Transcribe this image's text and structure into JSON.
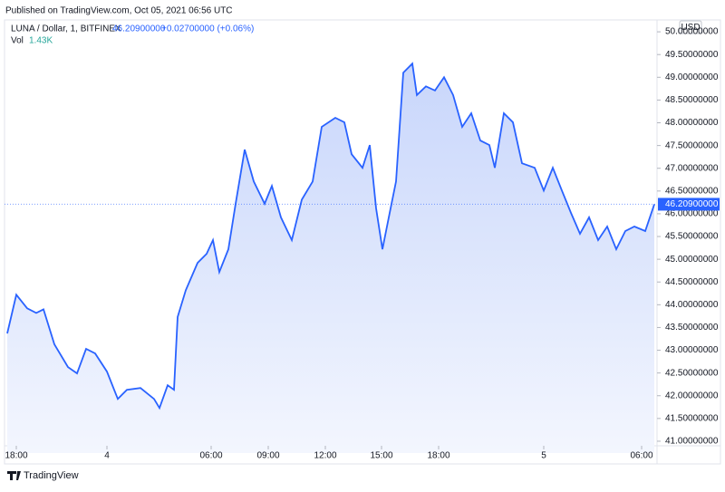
{
  "header": "Published on TradingView.com, Oct 05, 2021 06:56 UTC",
  "legend": {
    "symbol": "LUNA / Dollar, 1, BITFINEX",
    "price": "46.20900000",
    "change": "+0.02700000 (+0.06%)",
    "vol_label": "Vol",
    "vol_value": "1.43K"
  },
  "currency": "USD",
  "price_line_label": "46.20900000",
  "footer": "TradingView",
  "chart_data": {
    "type": "area",
    "color": "#2962ff",
    "fill": "#dbe4fb",
    "x": [
      3,
      13,
      25,
      35,
      43,
      55,
      70,
      80,
      90,
      100,
      113,
      125,
      135,
      150,
      165,
      171,
      180,
      187,
      191,
      200,
      213,
      223,
      230,
      237,
      247,
      255,
      265,
      275,
      287,
      295,
      305,
      317,
      328,
      340,
      350,
      365,
      375,
      383,
      395,
      403,
      410,
      417,
      425,
      432,
      440,
      450,
      455,
      465,
      475,
      485,
      495,
      505,
      515,
      525,
      535,
      541,
      551,
      561,
      571,
      585,
      595,
      605,
      615,
      625,
      635,
      645,
      655,
      665,
      675,
      685,
      695,
      707,
      717
    ],
    "values": [
      43.37,
      44.22,
      43.92,
      43.82,
      43.9,
      43.13,
      42.63,
      42.49,
      43.03,
      42.93,
      42.53,
      41.93,
      42.13,
      42.17,
      41.93,
      41.73,
      42.23,
      42.13,
      43.73,
      44.32,
      44.92,
      45.12,
      45.42,
      44.72,
      45.22,
      46.22,
      47.41,
      46.71,
      46.22,
      46.61,
      45.92,
      45.42,
      46.31,
      46.71,
      47.91,
      48.11,
      48.01,
      47.31,
      47.01,
      47.51,
      46.12,
      45.22,
      46.02,
      46.71,
      49.1,
      49.3,
      48.61,
      48.8,
      48.71,
      49.0,
      48.61,
      47.91,
      48.21,
      47.61,
      47.51,
      47.01,
      48.21,
      48.01,
      47.11,
      47.01,
      46.51,
      47.01,
      46.51,
      46.02,
      45.56,
      45.92,
      45.42,
      45.72,
      45.22,
      45.62,
      45.72,
      45.62,
      46.209
    ],
    "xlim": [
      0,
      720
    ],
    "xticks": [
      {
        "value": 13,
        "label": "18:00"
      },
      {
        "value": 113,
        "label": "4"
      },
      {
        "value": 228,
        "label": "06:00"
      },
      {
        "value": 291,
        "label": "09:00"
      },
      {
        "value": 354,
        "label": "12:00"
      },
      {
        "value": 416,
        "label": "15:00"
      },
      {
        "value": 479,
        "label": "18:00"
      },
      {
        "value": 595,
        "label": "5"
      },
      {
        "value": 703,
        "label": "06:00"
      }
    ],
    "ylim": [
      40.74,
      50.5
    ],
    "yticks": [
      {
        "value": 41,
        "label": "41.00000000"
      },
      {
        "value": 41.5,
        "label": "41.50000000"
      },
      {
        "value": 42,
        "label": "42.00000000"
      },
      {
        "value": 42.5,
        "label": "42.50000000"
      },
      {
        "value": 43,
        "label": "43.00000000"
      },
      {
        "value": 43.5,
        "label": "43.50000000"
      },
      {
        "value": 44,
        "label": "44.00000000"
      },
      {
        "value": 44.5,
        "label": "44.50000000"
      },
      {
        "value": 45,
        "label": "45.00000000"
      },
      {
        "value": 45.5,
        "label": "45.50000000"
      },
      {
        "value": 46,
        "label": "46.00000000"
      },
      {
        "value": 46.5,
        "label": "46.50000000"
      },
      {
        "value": 47,
        "label": "47.00000000"
      },
      {
        "value": 47.5,
        "label": "47.50000000"
      },
      {
        "value": 48,
        "label": "48.00000000"
      },
      {
        "value": 48.5,
        "label": "48.50000000"
      },
      {
        "value": 49,
        "label": "49.00000000"
      },
      {
        "value": 49.5,
        "label": "49.50000000"
      },
      {
        "value": 50,
        "label": "50.00000000"
      }
    ]
  }
}
